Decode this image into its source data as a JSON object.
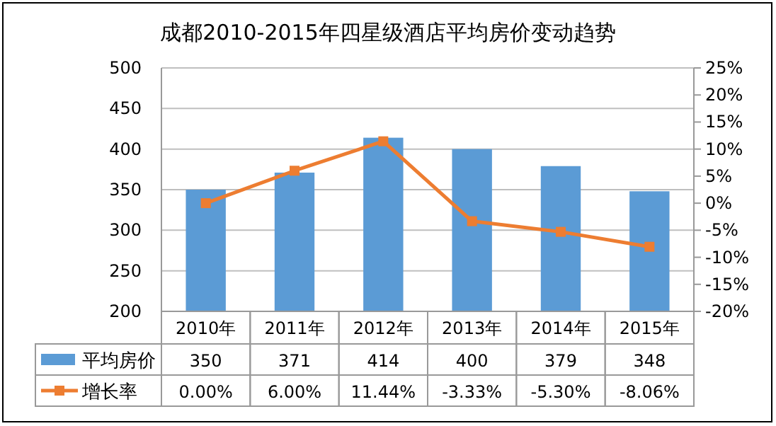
{
  "chart_data": {
    "type": "bar",
    "title": "成都2010-2015年四星级酒店平均房价变动趋势",
    "categories": [
      "2010年",
      "2011年",
      "2012年",
      "2013年",
      "2014年",
      "2015年"
    ],
    "series": [
      {
        "name": "平均房价",
        "color": "#5b9bd5",
        "values": [
          350,
          371,
          414,
          400,
          379,
          348
        ],
        "value_labels": [
          "350",
          "371",
          "414",
          "400",
          "379",
          "348"
        ]
      },
      {
        "name": "增长率",
        "type": "line",
        "axis": "y2",
        "color": "#ed7d31",
        "marker": "square",
        "values": [
          0,
          6,
          11.44,
          -3.33,
          -5.3,
          -8.06
        ],
        "value_labels": [
          "0.00%",
          "6.00%",
          "11.44%",
          "-3.33%",
          "-5.30%",
          "-8.06%"
        ]
      }
    ],
    "ylim": [
      200,
      500
    ],
    "yticks": [
      200,
      250,
      300,
      350,
      400,
      450,
      500
    ],
    "y2lim": [
      -20,
      25
    ],
    "y2ticks": [
      {
        "value": -20,
        "label": "-20%"
      },
      {
        "value": -15,
        "label": "-15%"
      },
      {
        "value": -10,
        "label": "-10%"
      },
      {
        "value": -5,
        "label": "-5%"
      },
      {
        "value": 0,
        "label": "0%"
      },
      {
        "value": 5,
        "label": "5%"
      },
      {
        "value": 10,
        "label": "10%"
      },
      {
        "value": 15,
        "label": "15%"
      },
      {
        "value": 20,
        "label": "20%"
      },
      {
        "value": 25,
        "label": "25%"
      }
    ],
    "grid": "y",
    "legend": "bottom"
  }
}
